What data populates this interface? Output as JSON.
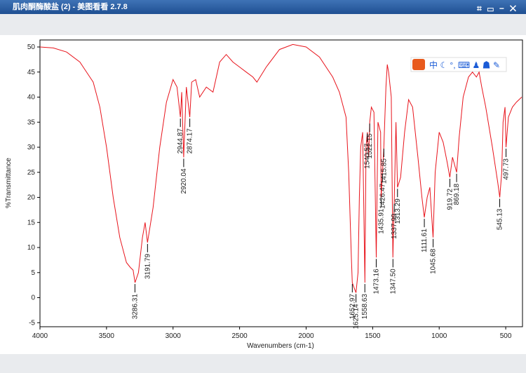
{
  "window": {
    "title": "肌肉酮酶酸盐 (2) - 美图看看 2.7.8"
  },
  "chart_data": {
    "type": "line",
    "xlabel": "Wavenumbers (cm-1)",
    "ylabel": "%Transmittance",
    "color": "#e8141c",
    "xlim": [
      4000,
      374
    ],
    "xticks": [
      4000,
      3500,
      3000,
      2500,
      2000,
      1500,
      1000,
      500
    ],
    "ylim": [
      -5.8,
      51.4
    ],
    "yticks": [
      -5,
      0,
      5,
      10,
      15,
      20,
      25,
      30,
      35,
      40,
      45,
      50
    ],
    "x": [
      4000,
      3900,
      3800,
      3700,
      3600,
      3550,
      3500,
      3450,
      3400,
      3350,
      3320,
      3300,
      3286,
      3260,
      3230,
      3210,
      3192,
      3150,
      3100,
      3050,
      3000,
      2970,
      2945,
      2935,
      2920,
      2900,
      2874,
      2860,
      2830,
      2800,
      2750,
      2700,
      2650,
      2600,
      2550,
      2500,
      2450,
      2400,
      2370,
      2300,
      2200,
      2100,
      2000,
      1900,
      1800,
      1750,
      1700,
      1680,
      1660,
      1653,
      1640,
      1625,
      1610,
      1600,
      1590,
      1575,
      1558,
      1550,
      1540,
      1530,
      1522,
      1510,
      1490,
      1473,
      1460,
      1440,
      1436,
      1426,
      1416,
      1400,
      1390,
      1380,
      1360,
      1348,
      1338,
      1325,
      1313,
      1290,
      1260,
      1230,
      1200,
      1160,
      1130,
      1112,
      1090,
      1070,
      1046,
      1030,
      1000,
      970,
      940,
      920,
      900,
      869,
      850,
      820,
      780,
      750,
      720,
      700,
      680,
      650,
      600,
      560,
      545,
      530,
      520,
      505,
      498,
      480,
      450,
      420,
      380
    ],
    "values": [
      50,
      49.8,
      49,
      47,
      43,
      38,
      30,
      20,
      12,
      7,
      6,
      5.5,
      3,
      5,
      12,
      15,
      11,
      18,
      30,
      39,
      43.5,
      42,
      36,
      41,
      28,
      42,
      36,
      43,
      43.5,
      40,
      42,
      41,
      47,
      48.5,
      47,
      46,
      45,
      44,
      43,
      46,
      49.5,
      50.5,
      50,
      48,
      44,
      41,
      36,
      25,
      8,
      3,
      2,
      1,
      5,
      20,
      30,
      33,
      3,
      30,
      33,
      28,
      35,
      38,
      37,
      8,
      35,
      33,
      20,
      25,
      30,
      42,
      46.5,
      45,
      40,
      8,
      19,
      35,
      22,
      24,
      33,
      39.5,
      38,
      28,
      20,
      16,
      20,
      22,
      12,
      25,
      33,
      31,
      27,
      24,
      28,
      25,
      32,
      40,
      44,
      45,
      44,
      45,
      42,
      38,
      30,
      23,
      20,
      25,
      35,
      38,
      30,
      36,
      38,
      39,
      40
    ],
    "peaks": {
      "x": [
        3286.31,
        3191.79,
        2944.87,
        2920.04,
        2874.17,
        1652.97,
        1625.14,
        1558.63,
        1540.57,
        1522.15,
        1473.16,
        1435.91,
        1426.47,
        1415.85,
        {
          "value": 1347.5,
          "label": "1347.50"
        },
        1337.99,
        1313.29,
        1111.61,
        1045.68,
        919.72,
        869.18,
        545.13,
        497.73
      ],
      "y": [
        3,
        11,
        36,
        28,
        36,
        3,
        1,
        3,
        33,
        35,
        8,
        20,
        25,
        30,
        8,
        19,
        22,
        16,
        12,
        24,
        25,
        20,
        30
      ]
    }
  }
}
